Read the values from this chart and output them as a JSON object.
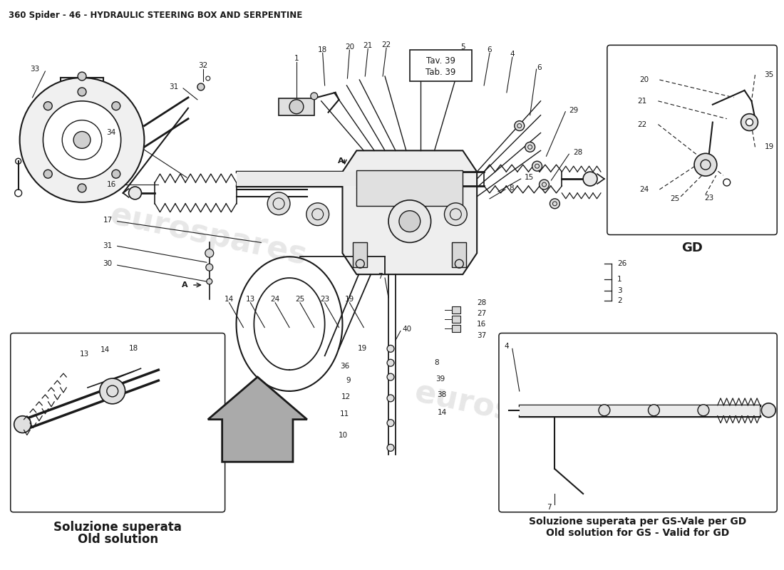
{
  "title": "360 Spider - 46 - HYDRAULIC STEERING BOX AND SERPENTINE",
  "title_fontsize": 8.5,
  "background_color": "#ffffff",
  "line_color": "#1a1a1a",
  "watermark_text": "eurospares",
  "watermark_color": "#d8d8d8",
  "box_gd_label": "GD",
  "tav_line1": "Tav. 39",
  "tav_line2": "Tab. 39",
  "label_old_it": "Soluzione superata",
  "label_old_en": "Old solution",
  "label_gs_it": "Soluzione superata per GS-Vale per GD",
  "label_gs_en": "Old solution for GS - Valid for GD",
  "fig_width": 11.0,
  "fig_height": 8.0,
  "dpi": 100
}
